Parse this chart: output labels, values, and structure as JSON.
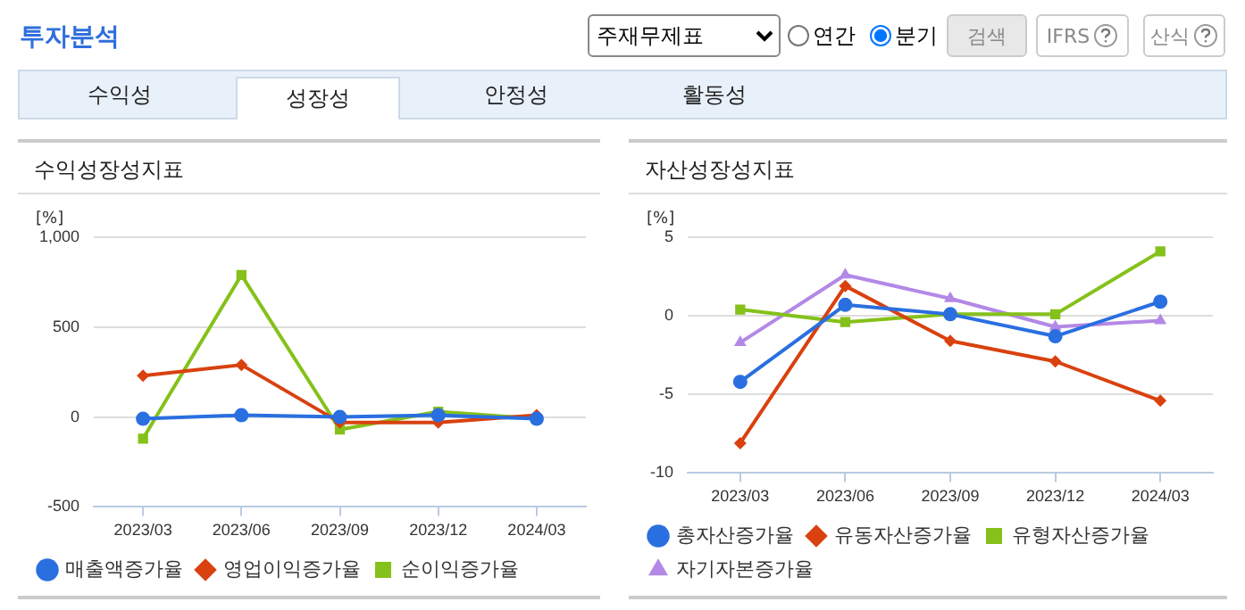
{
  "chart_data": [
    {
      "type": "other",
      "annotations": [
        "투자분석",
        "주재무제표",
        "연간",
        "분기",
        "검색",
        "IFRS",
        "산식",
        "수익성",
        "성장성",
        "안정성",
        "활동성"
      ]
    },
    {
      "type": "line",
      "title": "수익성장성지표",
      "ylabel": "[%]",
      "categories": [
        "2023/03",
        "2023/06",
        "2023/09",
        "2023/12",
        "2024/03"
      ],
      "series": [
        {
          "name": "매출액증가율",
          "color": "#2a6fe0",
          "marker": "circle",
          "values": [
            -10,
            10,
            0,
            10,
            -10
          ]
        },
        {
          "name": "영업이익증가율",
          "color": "#d9410f",
          "marker": "diamond",
          "values": [
            230,
            290,
            -30,
            -30,
            10
          ]
        },
        {
          "name": "순이익증가율",
          "color": "#85c11a",
          "marker": "square",
          "values": [
            -120,
            790,
            -70,
            30,
            -10
          ]
        }
      ],
      "ylim": [
        -500,
        1000
      ],
      "yticks": [
        {
          "value": -500,
          "label": "-500"
        },
        0,
        500,
        {
          "value": 1000,
          "label": "1,000"
        }
      ],
      "grid": "y",
      "legend": "bottom"
    },
    {
      "type": "line",
      "title": "자산성장성지표",
      "ylabel": "[%]",
      "categories": [
        "2023/03",
        "2023/06",
        "2023/09",
        "2023/12",
        "2024/03"
      ],
      "series": [
        {
          "name": "총자산증가율",
          "color": "#2a6fe0",
          "marker": "circle",
          "values": [
            -4.2,
            0.7,
            0.1,
            -1.3,
            0.9
          ]
        },
        {
          "name": "유동자산증가율",
          "color": "#d9410f",
          "marker": "diamond",
          "values": [
            -8.1,
            1.9,
            -1.6,
            -2.9,
            -5.4
          ]
        },
        {
          "name": "유형자산증가율",
          "color": "#85c11a",
          "marker": "square",
          "values": [
            0.4,
            -0.4,
            0.1,
            0.1,
            4.1
          ]
        },
        {
          "name": "자기자본증가율",
          "color": "#b388e6",
          "marker": "triangle",
          "values": [
            -1.7,
            2.6,
            1.1,
            -0.7,
            -0.3
          ]
        }
      ],
      "ylim": [
        -10,
        5
      ],
      "yticks": [
        -10,
        -5,
        0,
        5
      ],
      "grid": "y",
      "legend": "bottom"
    }
  ]
}
